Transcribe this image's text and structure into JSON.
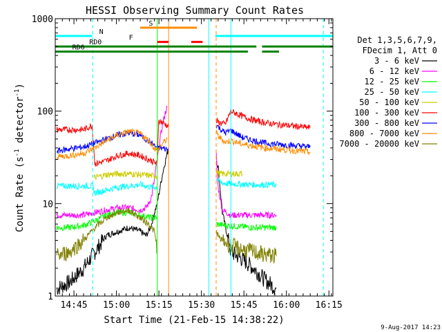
{
  "chart_data": {
    "type": "line",
    "title": "HESSI Observing Summary Count Rates",
    "xlabel": "Start Time (21-Feb-15 14:38:22)",
    "ylabel": "Count Rate (s⁻¹ detector⁻¹)",
    "ylabel_parts": {
      "main": "Count Rate (s",
      "exp1": "-1",
      "mid": " detector",
      "exp2": "-1",
      "end": ")"
    },
    "x_unit": "minutes since 14:38:22",
    "xlim": [
      0,
      98
    ],
    "ylim": [
      1,
      1000
    ],
    "yscale": "log",
    "x_ticks": [
      {
        "label": "14:45",
        "x": 6.6
      },
      {
        "label": "15:00",
        "x": 21.6
      },
      {
        "label": "15:15",
        "x": 36.6
      },
      {
        "label": "15:30",
        "x": 51.6
      },
      {
        "label": "15:45",
        "x": 66.6
      },
      {
        "label": "16:00",
        "x": 81.6
      },
      {
        "label": "16:15",
        "x": 96.6
      }
    ],
    "y_ticks": [
      {
        "label": "1",
        "y": 1
      },
      {
        "label": "10",
        "y": 10
      },
      {
        "label": "100",
        "y": 100
      },
      {
        "label": "1000",
        "y": 1000
      }
    ],
    "legend": {
      "placement": "right",
      "header": [
        "Det 1,3,5,6,7,9,",
        "FDecim 1, Att 0"
      ],
      "entries": [
        {
          "label": "3 - 6 keV",
          "color": "#000000"
        },
        {
          "label": "6 - 12 keV",
          "color": "#ff00ff"
        },
        {
          "label": "12 - 25 keV",
          "color": "#00ff00"
        },
        {
          "label": "25 - 50 keV",
          "color": "#00ffff"
        },
        {
          "label": "50 - 100 keV",
          "color": "#cccc00"
        },
        {
          "label": "100 - 300 keV",
          "color": "#ff0000"
        },
        {
          "label": "300 - 800 keV",
          "color": "#0000ff"
        },
        {
          "label": "800 - 7000 keV",
          "color": "#ff8c00"
        },
        {
          "label": "7000 - 20000 keV",
          "color": "#808000"
        }
      ]
    },
    "flag_bars": [
      {
        "label": "N",
        "color": "#00ffff",
        "y": 650,
        "segments": [
          [
            0,
            13
          ],
          [
            56.5,
            98
          ]
        ]
      },
      {
        "label": "S",
        "color": "#ff8c00",
        "y": 800,
        "segments": [
          [
            30,
            50
          ]
        ]
      },
      {
        "label": "F",
        "color": "#ff0000",
        "y": 560,
        "segments": [
          [
            36,
            40
          ],
          [
            48,
            52
          ]
        ]
      },
      {
        "label": "RD0",
        "color": "#008000",
        "y": 500,
        "segments": [
          [
            0,
            71
          ],
          [
            73,
            98
          ]
        ]
      },
      {
        "label": "RD6",
        "color": "#008000",
        "y": 440,
        "segments": [
          [
            0,
            68
          ],
          [
            73,
            79
          ]
        ]
      }
    ],
    "vertical_lines": [
      {
        "x": 13.2,
        "color": "#00ffff",
        "style": "dashed"
      },
      {
        "x": 36.0,
        "color": "#00ff00",
        "style": "solid"
      },
      {
        "x": 40.0,
        "color": "#ff8c00",
        "style": "solid"
      },
      {
        "x": 54.2,
        "color": "#00ffff",
        "style": "solid"
      },
      {
        "x": 56.8,
        "color": "#ff8c00",
        "style": "dashed"
      },
      {
        "x": 62.0,
        "color": "#00ffff",
        "style": "solid"
      },
      {
        "x": 94.6,
        "color": "#00ffff",
        "style": "dashed"
      }
    ],
    "series": [
      {
        "name": "3 - 6 keV",
        "color": "#000000",
        "segments": [
          [
            [
              0.5,
              1.2
            ],
            [
              5,
              1.4
            ],
            [
              10,
              2.0
            ],
            [
              14,
              3
            ],
            [
              18,
              4.5
            ],
            [
              22,
              5
            ],
            [
              26,
              5.5
            ],
            [
              30,
              5
            ],
            [
              32,
              4.5
            ],
            [
              33,
              5
            ],
            [
              34,
              6
            ],
            [
              35,
              8
            ],
            [
              36,
              10
            ],
            [
              37,
              15
            ],
            [
              38,
              22
            ],
            [
              39,
              30
            ],
            [
              40,
              40
            ]
          ],
          [
            [
              56.8,
              30
            ],
            [
              57.5,
              25
            ],
            [
              59,
              8
            ],
            [
              62,
              3
            ],
            [
              66,
              2.5
            ],
            [
              70,
              2
            ],
            [
              74,
              1.5
            ],
            [
              78,
              1.2
            ]
          ]
        ]
      },
      {
        "name": "6 - 12 keV",
        "color": "#ff00ff",
        "segments": [
          [
            [
              0.5,
              7.5
            ],
            [
              5,
              7.5
            ],
            [
              10,
              7.5
            ],
            [
              14,
              8
            ],
            [
              18,
              8.5
            ],
            [
              22,
              9
            ],
            [
              26,
              9
            ],
            [
              30,
              8.5
            ],
            [
              32,
              9
            ],
            [
              33,
              10
            ],
            [
              34,
              12
            ],
            [
              35,
              18
            ],
            [
              36,
              30
            ],
            [
              37,
              50
            ],
            [
              38,
              75
            ],
            [
              39,
              100
            ],
            [
              39.5,
              110
            ]
          ],
          [
            [
              56.8,
              35
            ],
            [
              57.5,
              15
            ],
            [
              59,
              8.5
            ],
            [
              62,
              7.5
            ],
            [
              70,
              7.5
            ],
            [
              78,
              7.5
            ]
          ]
        ]
      },
      {
        "name": "12 - 25 keV",
        "color": "#00ff00",
        "segments": [
          [
            [
              0.5,
              5.5
            ],
            [
              5,
              5.5
            ],
            [
              10,
              5.8
            ],
            [
              14,
              6.5
            ],
            [
              18,
              7.5
            ],
            [
              22,
              8
            ],
            [
              26,
              8
            ],
            [
              30,
              7.5
            ],
            [
              34,
              7
            ],
            [
              36,
              7
            ]
          ],
          [
            [
              56.8,
              6
            ],
            [
              60,
              5.8
            ],
            [
              70,
              5.5
            ],
            [
              78,
              5.5
            ]
          ]
        ]
      },
      {
        "name": "25 - 50 keV",
        "color": "#00ffff",
        "segments": [
          [
            [
              0.5,
              15.5
            ],
            [
              5,
              15.5
            ],
            [
              10,
              15.5
            ],
            [
              13,
              15.5
            ],
            [
              14,
              13
            ],
            [
              18,
              14
            ],
            [
              22,
              15
            ],
            [
              26,
              15.5
            ],
            [
              30,
              16
            ],
            [
              34,
              15
            ],
            [
              36,
              15
            ]
          ],
          [
            [
              56.8,
              19
            ],
            [
              58,
              17
            ],
            [
              60,
              16.5
            ],
            [
              70,
              16
            ],
            [
              78,
              16
            ]
          ]
        ]
      },
      {
        "name": "50 - 100 keV",
        "color": "#cccc00",
        "segments": [
          [
            [
              13.5,
              19
            ],
            [
              18,
              20.5
            ],
            [
              22,
              21
            ],
            [
              26,
              21
            ],
            [
              30,
              20.5
            ],
            [
              34,
              20
            ],
            [
              36,
              20
            ]
          ],
          [
            [
              56.8,
              22
            ],
            [
              58,
              21
            ],
            [
              62,
              21
            ],
            [
              66,
              21
            ]
          ]
        ]
      },
      {
        "name": "100 - 300 keV",
        "color": "#ff0000",
        "segments": [
          [
            [
              0.5,
              63
            ],
            [
              5,
              63
            ],
            [
              10,
              63
            ],
            [
              13,
              70
            ],
            [
              14,
              27
            ],
            [
              18,
              29
            ],
            [
              22,
              33
            ],
            [
              26,
              35
            ],
            [
              30,
              33
            ],
            [
              34,
              29
            ],
            [
              36,
              27
            ],
            [
              36.5,
              80
            ],
            [
              38,
              75
            ],
            [
              39.5,
              70
            ],
            [
              40,
              68
            ]
          ],
          [
            [
              56.8,
              78
            ],
            [
              58,
              75
            ],
            [
              60,
              72
            ],
            [
              62,
              100
            ],
            [
              66,
              88
            ],
            [
              70,
              80
            ],
            [
              74,
              75
            ],
            [
              78,
              72
            ],
            [
              82,
              70
            ],
            [
              86,
              68
            ],
            [
              90,
              66
            ]
          ]
        ]
      },
      {
        "name": "300 - 800 keV",
        "color": "#0000ff",
        "segments": [
          [
            [
              0.5,
              37
            ],
            [
              5,
              39
            ],
            [
              10,
              41
            ],
            [
              14,
              45
            ],
            [
              18,
              50
            ],
            [
              22,
              55
            ],
            [
              26,
              58
            ],
            [
              30,
              55
            ],
            [
              34,
              45
            ],
            [
              36,
              40
            ],
            [
              37,
              40
            ],
            [
              39,
              39
            ],
            [
              40,
              38
            ]
          ],
          [
            [
              56.8,
              72
            ],
            [
              58,
              65
            ],
            [
              60,
              58
            ],
            [
              62,
              62
            ],
            [
              66,
              52
            ],
            [
              70,
              48
            ],
            [
              74,
              45
            ],
            [
              78,
              44
            ],
            [
              82,
              43
            ],
            [
              86,
              42
            ],
            [
              90,
              41
            ]
          ]
        ]
      },
      {
        "name": "800 - 7000 keV",
        "color": "#ff8c00",
        "segments": [
          [
            [
              0.5,
              32
            ],
            [
              5,
              33
            ],
            [
              10,
              35
            ],
            [
              14,
              40
            ],
            [
              18,
              48
            ],
            [
              22,
              55
            ],
            [
              26,
              60
            ],
            [
              30,
              57
            ],
            [
              33,
              48
            ],
            [
              35,
              40
            ],
            [
              36,
              37
            ],
            [
              38,
              45
            ],
            [
              39.5,
              50
            ]
          ],
          [
            [
              56.8,
              58
            ],
            [
              58,
              52
            ],
            [
              60,
              46
            ],
            [
              62,
              48
            ],
            [
              66,
              44
            ],
            [
              70,
              42
            ],
            [
              74,
              40
            ],
            [
              78,
              39
            ],
            [
              82,
              38
            ],
            [
              86,
              37
            ],
            [
              90,
              36
            ]
          ]
        ]
      },
      {
        "name": "7000 - 20000 keV",
        "color": "#808000",
        "segments": [
          [
            [
              0.5,
              2.7
            ],
            [
              5,
              3
            ],
            [
              10,
              4
            ],
            [
              14,
              5.5
            ],
            [
              18,
              7
            ],
            [
              22,
              8
            ],
            [
              26,
              8.5
            ],
            [
              30,
              7
            ],
            [
              33,
              6
            ],
            [
              35,
              5
            ],
            [
              36,
              3
            ]
          ],
          [
            [
              56.8,
              5
            ],
            [
              58,
              4.2
            ],
            [
              62,
              3.5
            ],
            [
              66,
              3.2
            ],
            [
              70,
              3
            ],
            [
              74,
              2.8
            ],
            [
              78,
              2.7
            ]
          ]
        ]
      }
    ]
  },
  "footer": {
    "date_stamp": "9-Aug-2017 14:23"
  }
}
